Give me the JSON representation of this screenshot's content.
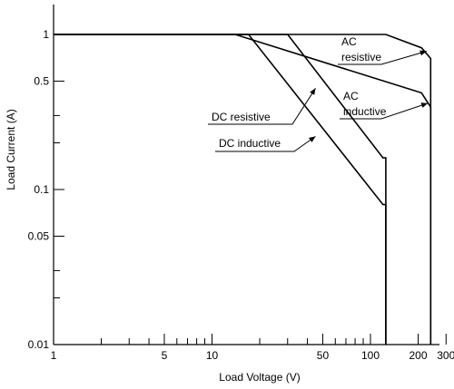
{
  "chart_data": {
    "type": "line",
    "xlabel": "Load Voltage (V)",
    "ylabel": "Load Current (A)",
    "xscale": "log",
    "yscale": "log",
    "xlim": [
      1,
      500
    ],
    "ylim": [
      0.01,
      2
    ],
    "x_ticks_labeled": [
      {
        "value": 1,
        "label": "1"
      },
      {
        "value": 5,
        "label": "5"
      },
      {
        "value": 10,
        "label": "10"
      },
      {
        "value": 50,
        "label": "50"
      },
      {
        "value": 100,
        "label": "100"
      },
      {
        "value": 200,
        "label": "200"
      },
      {
        "value": 300,
        "label": "300"
      }
    ],
    "x_ticks_minor": [
      2,
      3,
      4,
      6,
      7,
      8,
      9,
      20,
      30,
      40,
      60,
      70,
      80,
      90,
      400
    ],
    "y_ticks_labeled": [
      {
        "value": 0.01,
        "label": "0.01"
      },
      {
        "value": 0.05,
        "label": "0.05"
      },
      {
        "value": 0.1,
        "label": "0.1"
      },
      {
        "value": 0.5,
        "label": "0.5"
      },
      {
        "value": 1,
        "label": "1"
      }
    ],
    "y_ticks_minor": [
      0.02,
      0.03,
      0.2,
      0.3
    ],
    "grid": false,
    "legend": "none",
    "series": [
      {
        "name": "AC resistive",
        "points": [
          [
            1,
            1
          ],
          [
            125,
            1
          ],
          [
            210,
            0.82
          ],
          [
            240,
            0.7
          ],
          [
            240,
            0.01
          ]
        ]
      },
      {
        "name": "AC inductive",
        "points": [
          [
            1,
            1
          ],
          [
            14,
            1
          ],
          [
            210,
            0.42
          ],
          [
            240,
            0.34
          ],
          [
            240,
            0.01
          ]
        ]
      },
      {
        "name": "DC resistive",
        "points": [
          [
            1,
            1
          ],
          [
            30,
            1
          ],
          [
            120,
            0.16
          ],
          [
            125,
            0.16
          ],
          [
            125,
            0.01
          ]
        ]
      },
      {
        "name": "DC inductive",
        "points": [
          [
            1,
            1
          ],
          [
            17,
            1
          ],
          [
            120,
            0.08
          ],
          [
            125,
            0.08
          ],
          [
            125,
            0.01
          ]
        ]
      }
    ],
    "annotations": [
      {
        "series": "AC resistive",
        "lines": [
          "AC",
          "resistive"
        ],
        "point": [
          226,
          0.78
        ]
      },
      {
        "series": "AC inductive",
        "lines": [
          "AC",
          "inductive"
        ],
        "point": [
          230,
          0.36
        ]
      },
      {
        "series": "DC resistive",
        "lines": [
          "DC resistive"
        ],
        "point": [
          45,
          0.45
        ]
      },
      {
        "series": "DC inductive",
        "lines": [
          "DC inductive"
        ],
        "point": [
          45,
          0.22
        ]
      }
    ]
  }
}
